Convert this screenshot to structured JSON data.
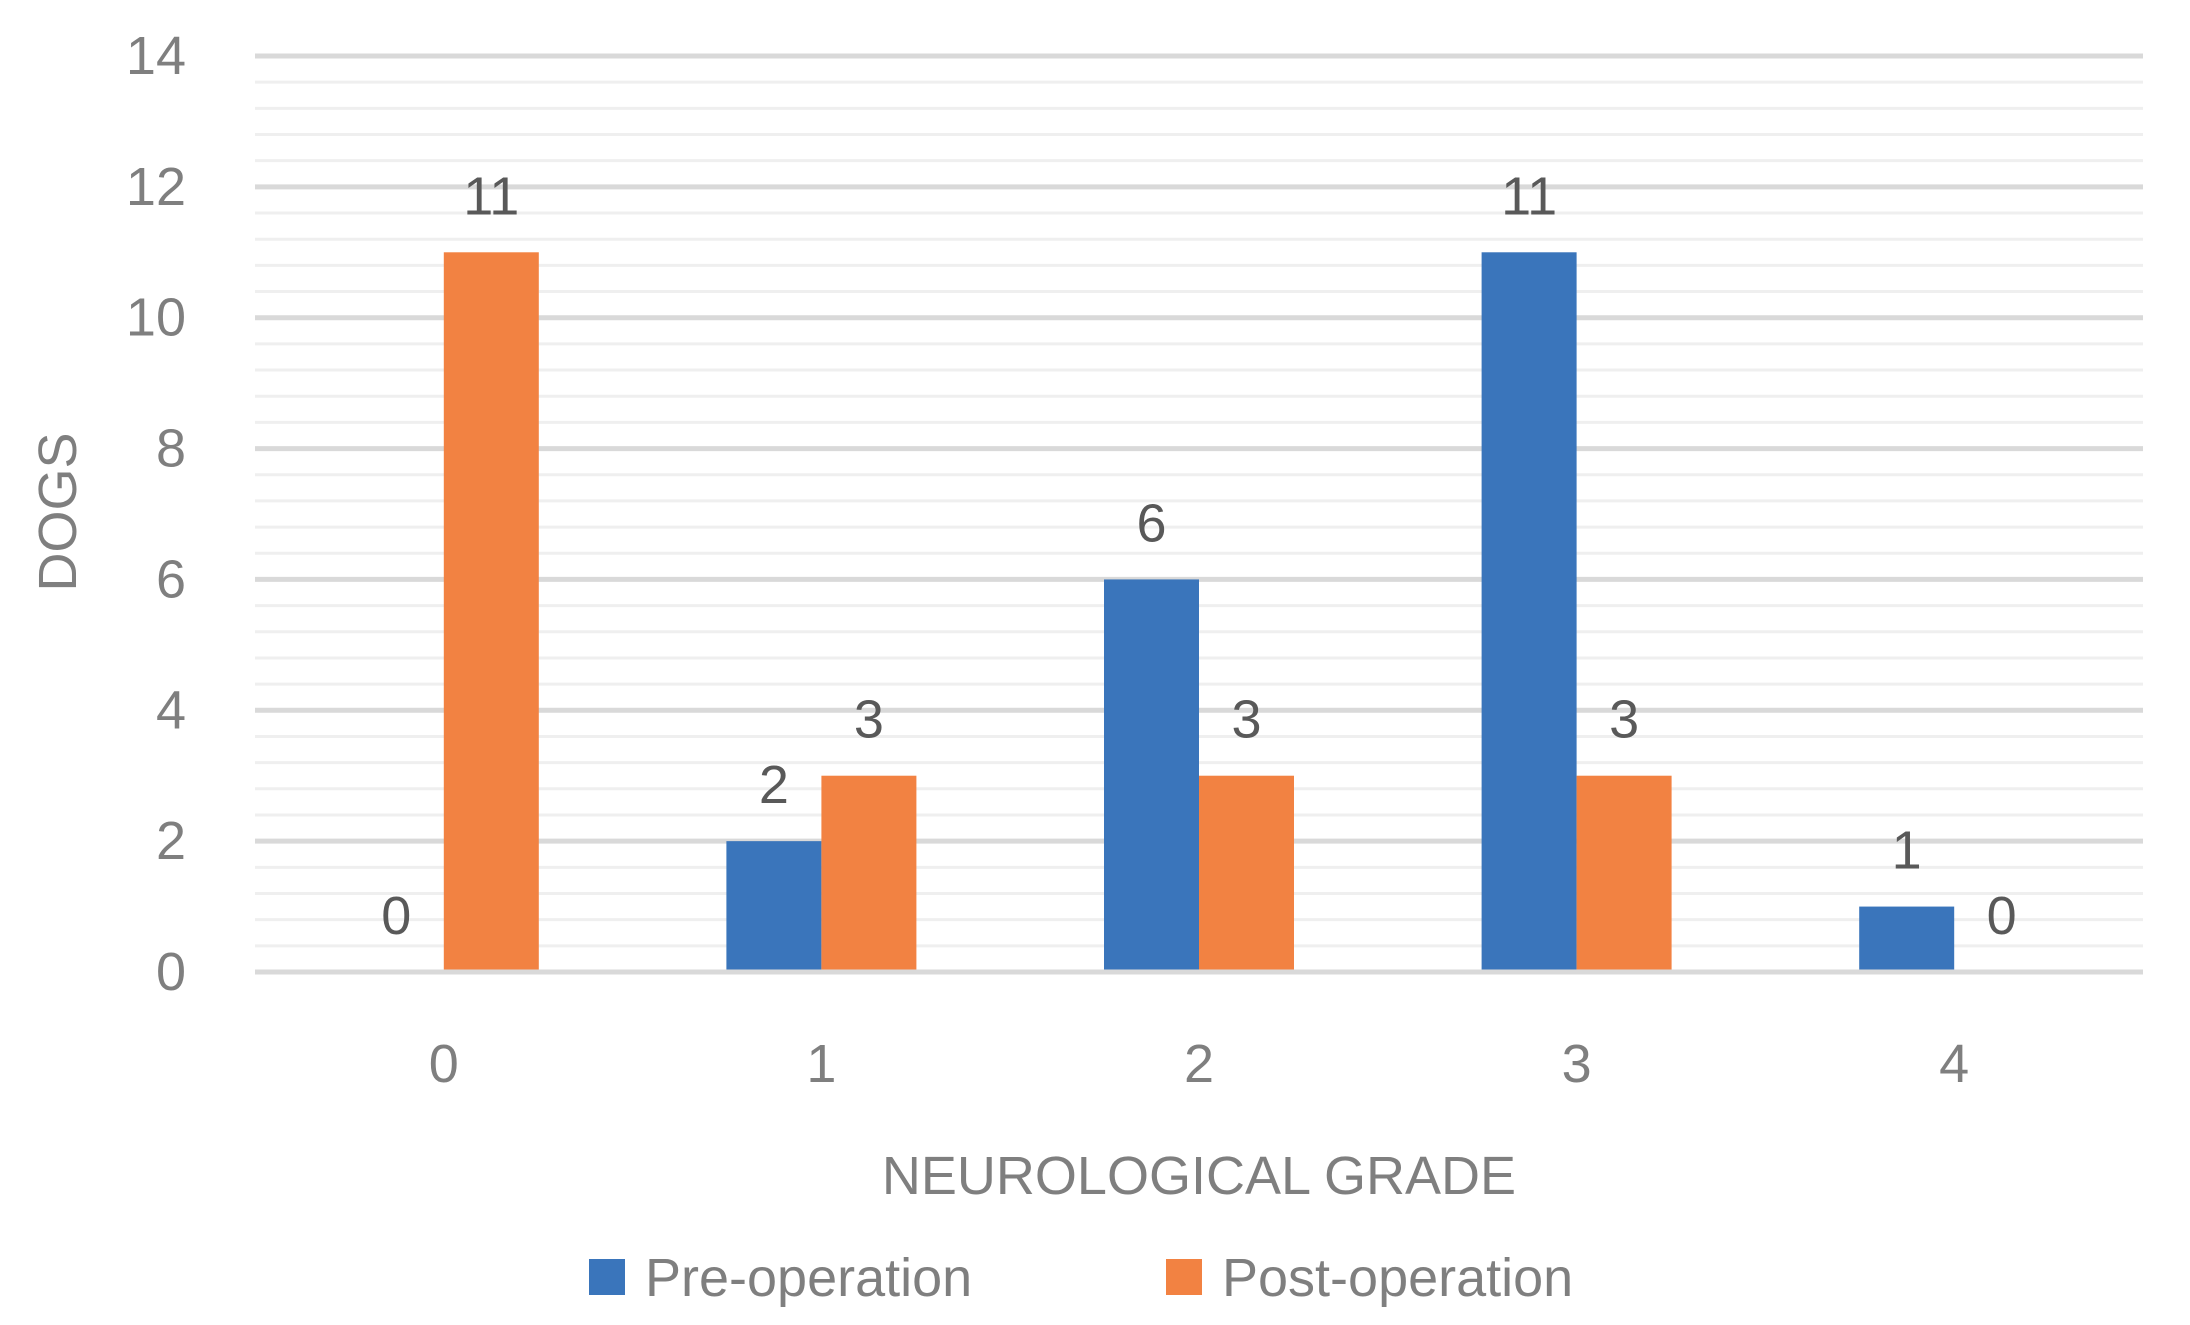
{
  "chart_data": {
    "type": "bar",
    "title": "",
    "xlabel": "NEUROLOGICAL GRADE",
    "ylabel": "DOGS",
    "categories": [
      "0",
      "1",
      "2",
      "3",
      "4"
    ],
    "series": [
      {
        "name": "Pre-operation",
        "values": [
          0,
          2,
          6,
          11,
          1
        ],
        "color": "#3a75bb"
      },
      {
        "name": "Post-operation",
        "values": [
          11,
          3,
          3,
          3,
          0
        ],
        "color": "#f28242"
      }
    ],
    "ylim": [
      0,
      14
    ],
    "yticks": [
      "0",
      "2",
      "4",
      "6",
      "8",
      "10",
      "12",
      "14"
    ],
    "data_labels": true,
    "grid": true,
    "legend_position": "bottom"
  }
}
